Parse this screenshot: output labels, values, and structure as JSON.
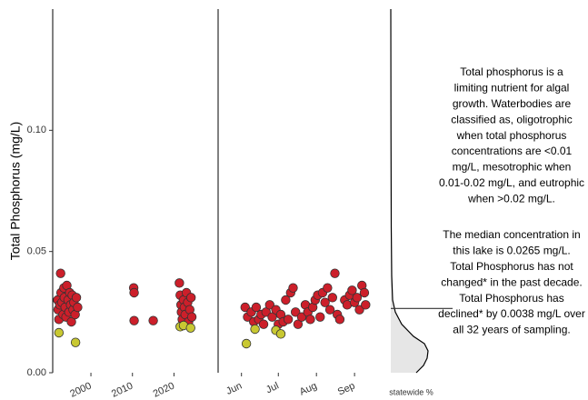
{
  "chart_data": [
    {
      "type": "scatter",
      "ylabel": "Total Phosphorus (mg/L)",
      "xlim": [
        1990.8,
        2028
      ],
      "xticks": [
        2000,
        2010,
        2020
      ],
      "ylim": [
        0,
        0.15
      ],
      "yticks": [
        {
          "value": 0,
          "label": "0.00"
        },
        {
          "value": 0.05,
          "label": "0.05"
        },
        {
          "value": 0.1,
          "label": "0.10"
        }
      ],
      "series": [
        {
          "color": "#cc1f2a",
          "x": [
            1992,
            1992.1,
            1992.3,
            1992.5,
            1992.7,
            1992.8,
            1993,
            1993.3,
            1993.5,
            1993.6,
            1993.8,
            1994,
            1994.2,
            1994.5,
            1994.7,
            1994.9,
            1995.1,
            1995.3,
            1995.5,
            1995.7,
            1995.9,
            1996.2,
            1996.5,
            1996.8,
            2010.3,
            2010.4,
            2010.4,
            2015,
            2021.3,
            2021.5,
            2021.7,
            2021.8,
            2022,
            2022.3,
            2022.5,
            2022.7,
            2023,
            2023.3,
            2023.5,
            2023.8,
            2024.1,
            2024.3
          ],
          "values": [
            0.03,
            0.026,
            0.022,
            0.028,
            0.041,
            0.033,
            0.029,
            0.024,
            0.035,
            0.031,
            0.027,
            0.023,
            0.036,
            0.03,
            0.025,
            0.033,
            0.028,
            0.021,
            0.032,
            0.026,
            0.029,
            0.024,
            0.031,
            0.027,
            0.035,
            0.033,
            0.0215,
            0.0215,
            0.037,
            0.032,
            0.028,
            0.025,
            0.022,
            0.03,
            0.027,
            0.024,
            0.033,
            0.029,
            0.021,
            0.026,
            0.031,
            0.023
          ]
        },
        {
          "color": "#c8c832",
          "x": [
            1992.3,
            1996.3,
            2021.5,
            2022.3,
            2024
          ],
          "values": [
            0.0165,
            0.0125,
            0.019,
            0.0195,
            0.0185
          ]
        }
      ]
    },
    {
      "type": "scatter",
      "xlim": [
        133,
        255
      ],
      "xticks": [
        {
          "value": 152,
          "label": "Jun"
        },
        {
          "value": 182,
          "label": "Jul"
        },
        {
          "value": 213,
          "label": "Aug"
        },
        {
          "value": 244,
          "label": "Sep"
        }
      ],
      "ylim": [
        0,
        0.15
      ],
      "series": [
        {
          "color": "#cc1f2a",
          "x": [
            155,
            157,
            160,
            162,
            164,
            166,
            168,
            170,
            172,
            175,
            177,
            180,
            182,
            184,
            186,
            188,
            190,
            192,
            194,
            196,
            198,
            201,
            204,
            206,
            208,
            210,
            212,
            214,
            216,
            218,
            220,
            222,
            224,
            226,
            228,
            230,
            232,
            236,
            238,
            240,
            242,
            244,
            246,
            248,
            250,
            252,
            253
          ],
          "values": [
            0.027,
            0.023,
            0.025,
            0.021,
            0.027,
            0.022,
            0.024,
            0.02,
            0.025,
            0.028,
            0.023,
            0.026,
            0.02,
            0.024,
            0.021,
            0.03,
            0.022,
            0.033,
            0.035,
            0.025,
            0.02,
            0.023,
            0.028,
            0.025,
            0.022,
            0.027,
            0.03,
            0.032,
            0.023,
            0.033,
            0.029,
            0.035,
            0.026,
            0.031,
            0.041,
            0.024,
            0.022,
            0.03,
            0.028,
            0.032,
            0.034,
            0.029,
            0.031,
            0.026,
            0.036,
            0.033,
            0.028
          ]
        },
        {
          "color": "#c8c832",
          "x": [
            156,
            163,
            180,
            184
          ],
          "values": [
            0.012,
            0.018,
            0.0175,
            0.016
          ]
        }
      ]
    },
    {
      "type": "density",
      "xlabel": "statewide %",
      "xlim": [
        0,
        45
      ],
      "ylim": [
        0,
        0.15
      ],
      "y": [
        0,
        0.003,
        0.006,
        0.009,
        0.012,
        0.015,
        0.02,
        0.025,
        0.03,
        0.04,
        0.06,
        0.1,
        0.15
      ],
      "values": [
        28,
        36,
        40,
        41,
        37,
        25,
        12,
        5,
        2,
        1,
        0.5,
        0.2,
        0
      ],
      "median": 0.0265
    }
  ],
  "annotation": {
    "paragraphs": [
      [
        "Total phosphorus is a",
        "limiting nutrient for algal",
        "growth. Waterbodies are",
        "classified as, oligotrophic",
        "when total phosphorus",
        "concentrations are <0.01",
        "mg/L, mesotrophic when",
        "0.01-0.02 mg/L, and eutrophic",
        "when >0.02 mg/L."
      ],
      [
        "The median concentration in",
        "this lake is 0.0265 mg/L.",
        "Total Phosphorus has not",
        "changed* in the past decade.",
        "Total Phosphorus has",
        "declined* by 0.0038 mg/L over",
        "all 32 years of sampling."
      ]
    ]
  }
}
